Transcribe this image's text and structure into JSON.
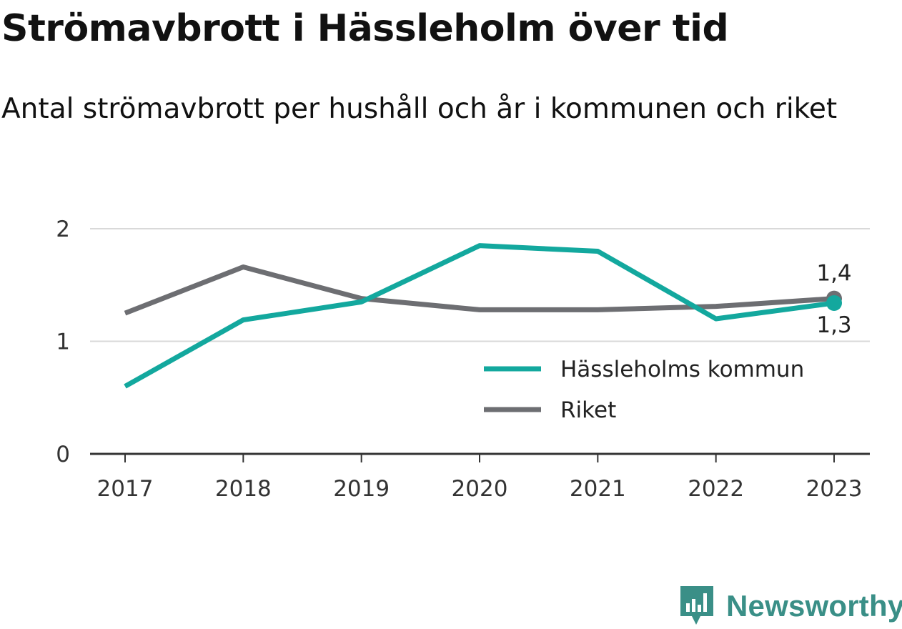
{
  "title": "Strömavbrott i Hässleholm över tid",
  "subtitle": "Antal strömavbrott per hushåll och år i kommunen och riket",
  "brand": {
    "name": "Newsworthy",
    "logo_icon": "newsworthy-logo-icon",
    "color": "#3a8f87"
  },
  "chart_data": {
    "type": "line",
    "x": [
      "2017",
      "2018",
      "2019",
      "2020",
      "2021",
      "2022",
      "2023"
    ],
    "ylim": [
      0,
      2
    ],
    "yticks": [
      "0",
      "1",
      "2"
    ],
    "grid": true,
    "legend_position": "bottom-right",
    "series": [
      {
        "name": "Hässleholms kommun",
        "color": "#13a89e",
        "values": [
          0.6,
          1.19,
          1.35,
          1.85,
          1.8,
          1.2,
          1.34
        ],
        "end_label": "1,3"
      },
      {
        "name": "Riket",
        "color": "#6d6e72",
        "values": [
          1.25,
          1.66,
          1.38,
          1.28,
          1.28,
          1.31,
          1.38
        ],
        "end_label": "1,4"
      }
    ]
  }
}
